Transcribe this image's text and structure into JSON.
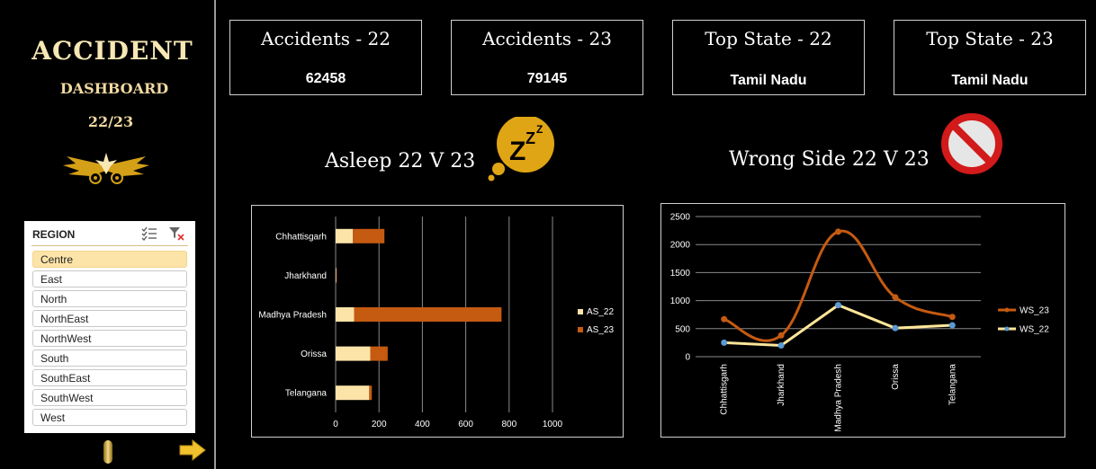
{
  "sidebar": {
    "title": "ACCIDENT",
    "subtitle": "DASHBOARD",
    "period": "22/23",
    "slicer": {
      "title": "REGION",
      "items": [
        "Centre",
        "East",
        "North",
        "NorthEast",
        "NorthWest",
        "South",
        "SouthEast",
        "SouthWest",
        "West"
      ],
      "selected": "Centre"
    }
  },
  "kpis": [
    {
      "label": "Accidents - 22",
      "value": "62458"
    },
    {
      "label": "Accidents - 23",
      "value": "79145"
    },
    {
      "label": "Top State - 22",
      "value": "Tamil Nadu"
    },
    {
      "label": "Top State - 23",
      "value": "Tamil Nadu"
    }
  ],
  "icons": {
    "sleep": "sleep-bubble-icon",
    "no_entry": "no-entry-icon",
    "emblem": "golden-wings-emblem-icon",
    "next": "arrow-right-icon"
  },
  "colors": {
    "series22": "#fce4a8",
    "series23": "#c55a11",
    "line22": "#ffe699",
    "line23": "#c55a11",
    "marker22": "#5b9bd5",
    "accent": "#f2c12e"
  },
  "chart_data": [
    {
      "type": "bar",
      "orientation": "horizontal",
      "stacked": true,
      "title": "Asleep 22 V 23",
      "categories": [
        "Chhattisgarh",
        "Jharkhand",
        "Madhya Pradesh",
        "Orissa",
        "Telangana"
      ],
      "series": [
        {
          "name": "AS_22",
          "values": [
            80,
            3,
            85,
            160,
            155
          ]
        },
        {
          "name": "AS_23",
          "values": [
            145,
            2,
            680,
            80,
            12
          ]
        }
      ],
      "xlim": [
        0,
        1000
      ],
      "xticks": [
        0,
        200,
        400,
        600,
        800,
        1000
      ],
      "grid": true,
      "legend": "right"
    },
    {
      "type": "line",
      "smooth": true,
      "title": "Wrong Side 22 V 23",
      "categories": [
        "Chhattisgarh",
        "Jharkhand",
        "Madhya Pradesh",
        "Orissa",
        "Telangana"
      ],
      "series": [
        {
          "name": "WS_23",
          "values": [
            670,
            380,
            2230,
            1060,
            710
          ]
        },
        {
          "name": "WS_22",
          "values": [
            250,
            200,
            920,
            510,
            560
          ]
        }
      ],
      "ylim": [
        0,
        2500
      ],
      "yticks": [
        0,
        500,
        1000,
        1500,
        2000,
        2500
      ],
      "grid": true,
      "legend": "right"
    }
  ]
}
